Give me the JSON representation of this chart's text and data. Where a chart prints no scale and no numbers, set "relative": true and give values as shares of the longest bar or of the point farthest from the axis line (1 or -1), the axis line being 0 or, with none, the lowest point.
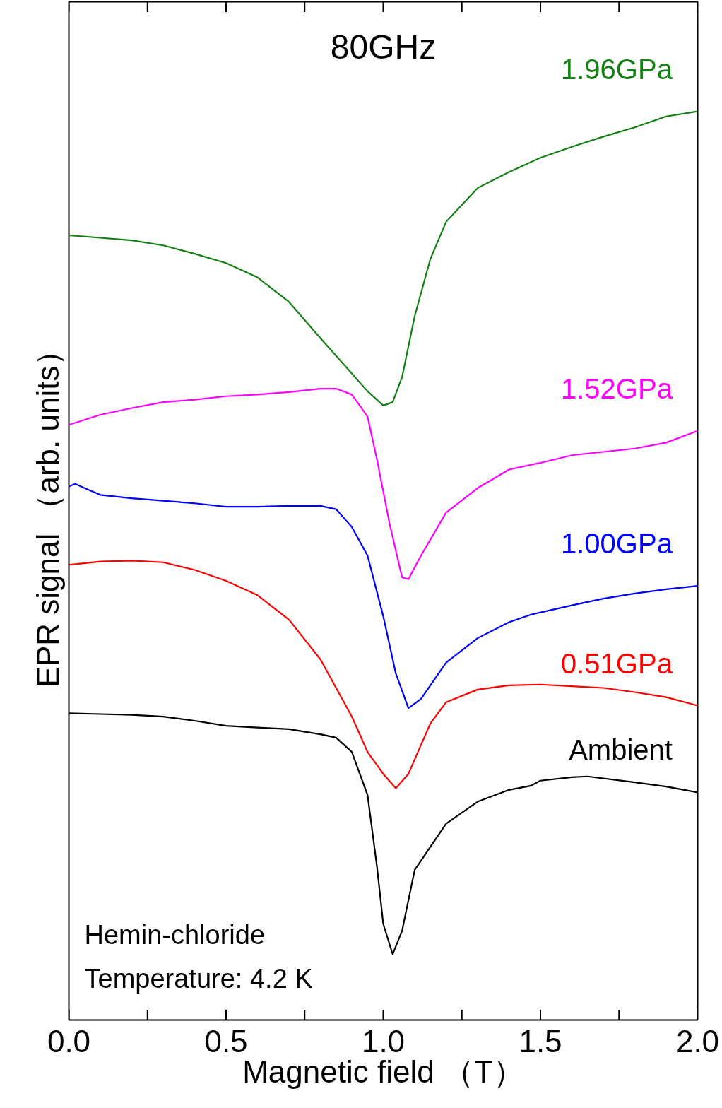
{
  "chart_data": {
    "type": "line",
    "title": "80GHz",
    "xlabel": "Magnetic field （T）",
    "ylabel": "EPR signal （arb. units）",
    "relative": true,
    "grid": false,
    "marker": "none",
    "line_style": "solid",
    "xlim": [
      0,
      2
    ],
    "xticks": [
      {
        "value": 0,
        "label": "0.0"
      },
      {
        "value": 0.5,
        "label": "0.5"
      },
      {
        "value": 1,
        "label": "1.0"
      },
      {
        "value": 1.5,
        "label": "1.5"
      },
      {
        "value": 2,
        "label": "2.0"
      }
    ],
    "annotations": [
      "Hemin-chloride",
      "Temperature: 4.2 K"
    ],
    "series": [
      {
        "name": "1.96GPa",
        "color": "#138013",
        "x": [
          0,
          0.1,
          0.2,
          0.3,
          0.4,
          0.5,
          0.6,
          0.7,
          0.8,
          0.85,
          0.9,
          0.95,
          1.0,
          1.03,
          1.06,
          1.1,
          1.15,
          1.2,
          1.3,
          1.4,
          1.5,
          1.6,
          1.7,
          1.8,
          1.9,
          2.0
        ],
        "values": [
          0.853,
          0.85,
          0.847,
          0.841,
          0.831,
          0.82,
          0.803,
          0.774,
          0.731,
          0.71,
          0.689,
          0.668,
          0.651,
          0.655,
          0.685,
          0.757,
          0.825,
          0.869,
          0.909,
          0.928,
          0.945,
          0.958,
          0.97,
          0.981,
          0.994,
          1.0
        ]
      },
      {
        "name": "1.52GPa",
        "color": "#ff00ff",
        "x": [
          0,
          0.1,
          0.2,
          0.3,
          0.4,
          0.5,
          0.6,
          0.7,
          0.8,
          0.85,
          0.9,
          0.95,
          0.98,
          1.02,
          1.06,
          1.08,
          1.12,
          1.2,
          1.3,
          1.4,
          1.5,
          1.6,
          1.7,
          1.8,
          1.9,
          2.0
        ],
        "values": [
          0.628,
          0.64,
          0.648,
          0.655,
          0.658,
          0.662,
          0.664,
          0.667,
          0.671,
          0.671,
          0.664,
          0.638,
          0.587,
          0.511,
          0.447,
          0.445,
          0.473,
          0.524,
          0.553,
          0.575,
          0.583,
          0.592,
          0.596,
          0.6,
          0.607,
          0.621
        ]
      },
      {
        "name": "1.00GPa",
        "color": "#0000ff",
        "x": [
          0,
          0.02,
          0.05,
          0.1,
          0.2,
          0.3,
          0.4,
          0.5,
          0.6,
          0.7,
          0.8,
          0.85,
          0.9,
          0.95,
          1.0,
          1.04,
          1.08,
          1.12,
          1.2,
          1.3,
          1.4,
          1.47,
          1.6,
          1.7,
          1.8,
          1.9,
          2.0
        ],
        "values": [
          0.555,
          0.558,
          0.553,
          0.545,
          0.541,
          0.538,
          0.535,
          0.531,
          0.531,
          0.532,
          0.532,
          0.528,
          0.507,
          0.473,
          0.401,
          0.333,
          0.292,
          0.303,
          0.346,
          0.375,
          0.394,
          0.403,
          0.414,
          0.422,
          0.428,
          0.433,
          0.437
        ]
      },
      {
        "name": "0.51GPa",
        "color": "#ff0000",
        "x": [
          0,
          0.1,
          0.2,
          0.3,
          0.4,
          0.5,
          0.6,
          0.7,
          0.8,
          0.9,
          0.95,
          1.0,
          1.04,
          1.08,
          1.15,
          1.2,
          1.3,
          1.4,
          1.5,
          1.6,
          1.7,
          1.8,
          1.9,
          2.0
        ],
        "values": [
          0.462,
          0.466,
          0.467,
          0.465,
          0.456,
          0.443,
          0.426,
          0.397,
          0.35,
          0.282,
          0.24,
          0.214,
          0.197,
          0.214,
          0.274,
          0.299,
          0.314,
          0.319,
          0.32,
          0.318,
          0.316,
          0.311,
          0.305,
          0.295
        ]
      },
      {
        "name": "Ambient",
        "color": "#000000",
        "x": [
          0,
          0.1,
          0.2,
          0.3,
          0.4,
          0.5,
          0.6,
          0.7,
          0.8,
          0.85,
          0.9,
          0.95,
          0.98,
          1.0,
          1.03,
          1.06,
          1.1,
          1.2,
          1.3,
          1.4,
          1.47,
          1.5,
          1.6,
          1.65,
          1.8,
          1.9,
          2.0
        ],
        "values": [
          0.286,
          0.285,
          0.284,
          0.282,
          0.277,
          0.271,
          0.269,
          0.267,
          0.261,
          0.257,
          0.24,
          0.189,
          0.104,
          0.036,
          0.0,
          0.028,
          0.1,
          0.155,
          0.181,
          0.195,
          0.2,
          0.206,
          0.21,
          0.211,
          0.204,
          0.199,
          0.192
        ]
      }
    ]
  }
}
